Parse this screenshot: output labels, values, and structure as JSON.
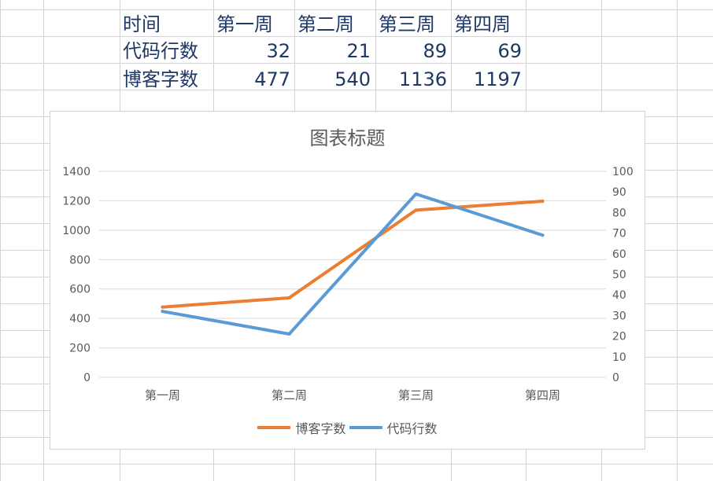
{
  "table": {
    "header": [
      "时间",
      "第一周",
      "第二周",
      "第三周",
      "第四周"
    ],
    "rows": [
      {
        "label": "代码行数",
        "values": [
          "32",
          "21",
          "89",
          "69"
        ]
      },
      {
        "label": "博客字数",
        "values": [
          "477",
          "540",
          "1136",
          "1197"
        ]
      }
    ]
  },
  "colors": {
    "series_blog": "#ed7d31",
    "series_code": "#5b9bd5",
    "gridline": "#d9d9d9",
    "cell_text": "#1f3864"
  },
  "chart_data": {
    "type": "line",
    "title": "图表标题",
    "categories": [
      "第一周",
      "第二周",
      "第三周",
      "第四周"
    ],
    "series": [
      {
        "name": "博客字数",
        "axis": "left",
        "color": "#ed7d31",
        "values": [
          477,
          540,
          1136,
          1197
        ]
      },
      {
        "name": "代码行数",
        "axis": "right",
        "color": "#5b9bd5",
        "values": [
          32,
          21,
          89,
          69
        ]
      }
    ],
    "y_left": {
      "ylim": [
        0,
        1400
      ],
      "ticks": [
        "0",
        "200",
        "400",
        "600",
        "800",
        "1000",
        "1200",
        "1400"
      ]
    },
    "y_right": {
      "ylim": [
        0,
        100
      ],
      "ticks": [
        "0",
        "10",
        "20",
        "30",
        "40",
        "50",
        "60",
        "70",
        "80",
        "90",
        "100"
      ]
    },
    "grid": true,
    "legend": "bottom"
  }
}
